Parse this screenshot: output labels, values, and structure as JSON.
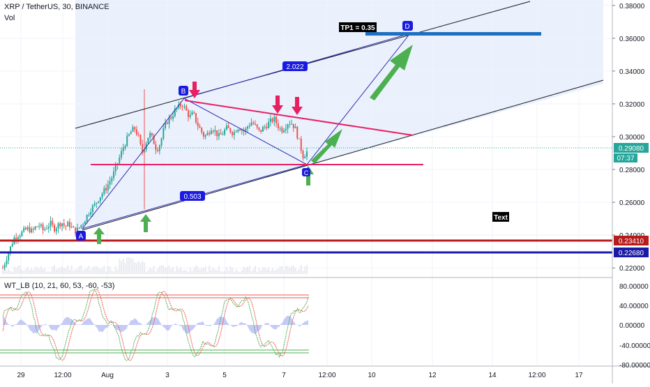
{
  "header": {
    "title": "XRP / TetherUS, 30, BINANCE",
    "volume_label": "Vol"
  },
  "oscillator": {
    "title": "WT_LB (10, 21, 60, 53, -60, -53)",
    "axis_labels": [
      "80.00000",
      "40.00000",
      "0.00000",
      "-40.00000",
      "-80.00000"
    ]
  },
  "price_axis": {
    "labels": [
      "0.38000",
      "0.36000",
      "0.34000",
      "0.32000",
      "0.30000",
      "0.28000",
      "0.26000",
      "0.24000",
      "0.22000"
    ],
    "current_price": "0.29080",
    "countdown": "07:37",
    "level_red": "0.23410",
    "level_blue": "0.22680"
  },
  "time_axis": {
    "labels": [
      "29",
      "12:00",
      "Aug",
      "3",
      "5",
      "7",
      "12:00",
      "10",
      "12",
      "14",
      "12:00",
      "17"
    ]
  },
  "annotations": {
    "point_a": "A",
    "point_b": "B",
    "point_c": "C",
    "point_d": "D",
    "ratio_upper": "2.022",
    "ratio_lower": "0.503",
    "tp_label": "TP1 = 0.35",
    "text_note": "Text"
  },
  "colors": {
    "up_candle": "#26a69a",
    "down_candle": "#ef5350",
    "channel_fill": "#e3ecfb",
    "pink_line": "#e91e63",
    "red_level": "#b71c1c",
    "blue_level": "#1a1aa6",
    "tp_bar": "#1e6fc0",
    "arrow_green": "#4caf50",
    "arrow_pink": "#e91e63"
  },
  "chart_data": {
    "type": "candlestick",
    "symbol": "XRP / TetherUS",
    "interval": "30",
    "exchange": "BINANCE",
    "price_range": [
      0.215,
      0.385
    ],
    "close_series": [
      0.22,
      0.226,
      0.232,
      0.238,
      0.24,
      0.241,
      0.243,
      0.244,
      0.242,
      0.245,
      0.246,
      0.243,
      0.245,
      0.247,
      0.244,
      0.246,
      0.248,
      0.245,
      0.247,
      0.244,
      0.242,
      0.245,
      0.248,
      0.252,
      0.256,
      0.258,
      0.262,
      0.265,
      0.268,
      0.272,
      0.276,
      0.282,
      0.288,
      0.294,
      0.299,
      0.303,
      0.305,
      0.3,
      0.29,
      0.296,
      0.302,
      0.298,
      0.292,
      0.296,
      0.305,
      0.31,
      0.312,
      0.316,
      0.318,
      0.32,
      0.316,
      0.312,
      0.314,
      0.308,
      0.304,
      0.3,
      0.302,
      0.306,
      0.303,
      0.3,
      0.302,
      0.305,
      0.304,
      0.302,
      0.306,
      0.305,
      0.303,
      0.307,
      0.309,
      0.306,
      0.303,
      0.305,
      0.307,
      0.309,
      0.311,
      0.307,
      0.304,
      0.306,
      0.309,
      0.308,
      0.304,
      0.296,
      0.288,
      0.2908
    ],
    "levels": {
      "resistance_red": 0.2341,
      "support_blue": 0.2268,
      "horizontal_pink": 0.28
    },
    "oscillator_bands": {
      "upper": [
        53,
        60
      ],
      "lower": [
        -53,
        -60
      ]
    }
  }
}
